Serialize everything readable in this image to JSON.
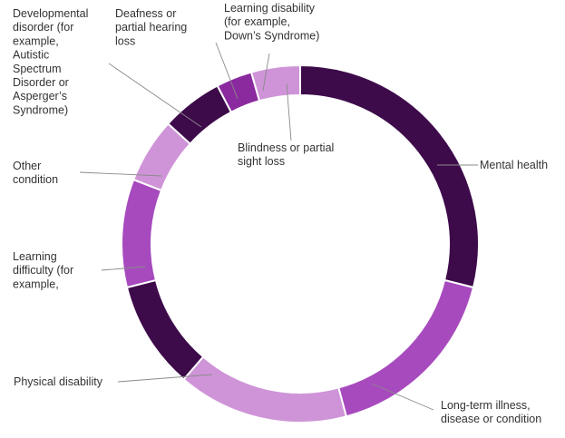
{
  "chart_data": {
    "type": "donut",
    "title": "",
    "legend": "none",
    "colors": {
      "dark": "#3d0a4a",
      "medium": "#a74abe",
      "light": "#cf94d8",
      "violet": "#8a2a9e"
    },
    "slices": [
      {
        "label": "Mental health",
        "lines": [
          "Mental health"
        ],
        "value": 27.5,
        "color": "#3d0a4a"
      },
      {
        "label": "Long-term illness, disease or condition",
        "lines": [
          "Long-term illness,",
          "disease or condition"
        ],
        "value": 16.1,
        "color": "#a74abe"
      },
      {
        "label": "Physical disability",
        "lines": [
          "Physical disability"
        ],
        "value": 14.7,
        "color": "#cf94d8"
      },
      {
        "label": "Learning difficulty (for example,",
        "lines": [
          "Learning",
          "difficulty (for",
          "example,"
        ],
        "value": 9.3,
        "color": "#3d0a4a"
      },
      {
        "label": "Other condition",
        "lines": [
          "Other",
          "condition"
        ],
        "value": 9.3,
        "color": "#a74abe"
      },
      {
        "label": "Developmental disorder (for example, Autistic Spectrum Disorder or Asperger's Syndrome)",
        "lines": [
          "Developmental",
          "disorder (for",
          "example,",
          "Autistic",
          "Spectrum",
          "Disorder or",
          "Asperger’s",
          "Syndrome)"
        ],
        "value": 5.6,
        "color": "#cf94d8"
      },
      {
        "label": "Deafness or partial hearing loss",
        "lines": [
          "Deafness or",
          "partial hearing",
          "loss"
        ],
        "value": 5.3,
        "color": "#3d0a4a"
      },
      {
        "label": "Learning disability (for example, Down's Syndrome)",
        "lines": [
          "Learning disability",
          "(for example,",
          "Down’s Syndrome)"
        ],
        "value": 3.1,
        "color": "#8a2a9e"
      },
      {
        "label": "Blindness or partial sight loss",
        "lines": [
          "Blindness or partial",
          "sight loss"
        ],
        "value": 4.2,
        "color": "#cf94d8"
      }
    ]
  }
}
